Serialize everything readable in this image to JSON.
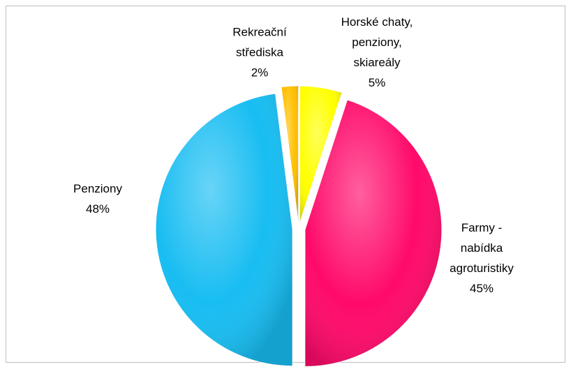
{
  "chart_data": {
    "type": "pie",
    "categories": [
      "Horské chaty, penziony, skiareály",
      "Farmy - nabídka agroturistiky",
      "Penziony",
      "Rekreační střediska"
    ],
    "values": [
      5,
      45,
      48,
      2
    ],
    "value_labels": [
      "5%",
      "45%",
      "48%",
      "2%"
    ],
    "colors": [
      "#ffff00",
      "#ff0a6a",
      "#18bdf2",
      "#ffc000"
    ]
  }
}
